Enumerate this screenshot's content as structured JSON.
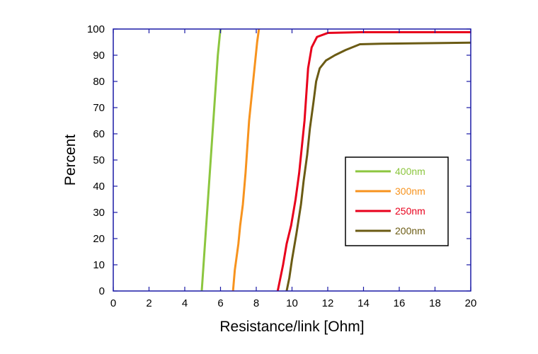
{
  "chart_data": {
    "type": "line",
    "title": "",
    "xlabel": "Resistance/link [Ohm]",
    "ylabel": "Percent",
    "xlim": [
      0,
      20
    ],
    "ylim": [
      0,
      100
    ],
    "xticks": [
      "0",
      "2",
      "4",
      "6",
      "8",
      "10",
      "12",
      "14",
      "16",
      "18",
      "20"
    ],
    "yticks": [
      "0",
      "10",
      "20",
      "30",
      "40",
      "50",
      "60",
      "70",
      "80",
      "90",
      "100"
    ],
    "grid": false,
    "legend_position": "center-right",
    "series": [
      {
        "name": "400nm",
        "color": "#8cc63f",
        "points": [
          [
            4.95,
            0
          ],
          [
            5.0,
            5
          ],
          [
            5.05,
            10
          ],
          [
            5.15,
            20
          ],
          [
            5.25,
            30
          ],
          [
            5.35,
            40
          ],
          [
            5.45,
            50
          ],
          [
            5.55,
            60
          ],
          [
            5.65,
            70
          ],
          [
            5.75,
            80
          ],
          [
            5.85,
            90
          ],
          [
            5.95,
            97
          ],
          [
            6.0,
            100
          ]
        ]
      },
      {
        "name": "300nm",
        "color": "#f7931e",
        "points": [
          [
            6.7,
            0
          ],
          [
            6.8,
            8
          ],
          [
            6.9,
            13
          ],
          [
            7.0,
            18
          ],
          [
            7.1,
            25
          ],
          [
            7.25,
            33
          ],
          [
            7.4,
            45
          ],
          [
            7.5,
            55
          ],
          [
            7.6,
            65
          ],
          [
            7.75,
            75
          ],
          [
            7.9,
            85
          ],
          [
            8.05,
            95
          ],
          [
            8.15,
            100
          ]
        ]
      },
      {
        "name": "250nm",
        "color": "#e8001c",
        "points": [
          [
            9.2,
            0
          ],
          [
            9.35,
            5
          ],
          [
            9.5,
            10
          ],
          [
            9.7,
            18
          ],
          [
            9.95,
            25
          ],
          [
            10.2,
            35
          ],
          [
            10.4,
            45
          ],
          [
            10.55,
            55
          ],
          [
            10.7,
            65
          ],
          [
            10.8,
            75
          ],
          [
            10.9,
            85
          ],
          [
            11.1,
            93
          ],
          [
            11.4,
            97
          ],
          [
            12.0,
            98.5
          ],
          [
            14.0,
            98.8
          ],
          [
            20.0,
            98.8
          ]
        ]
      },
      {
        "name": "200nm",
        "color": "#6b5b14",
        "points": [
          [
            9.7,
            0
          ],
          [
            9.85,
            5
          ],
          [
            10.0,
            12
          ],
          [
            10.25,
            22
          ],
          [
            10.5,
            33
          ],
          [
            10.65,
            42
          ],
          [
            10.85,
            52
          ],
          [
            11.0,
            62
          ],
          [
            11.2,
            72
          ],
          [
            11.35,
            80
          ],
          [
            11.55,
            85
          ],
          [
            11.9,
            88
          ],
          [
            12.4,
            90
          ],
          [
            13.0,
            92
          ],
          [
            13.8,
            94.2
          ],
          [
            15.0,
            94.4
          ],
          [
            20.0,
            94.8
          ]
        ]
      }
    ]
  }
}
